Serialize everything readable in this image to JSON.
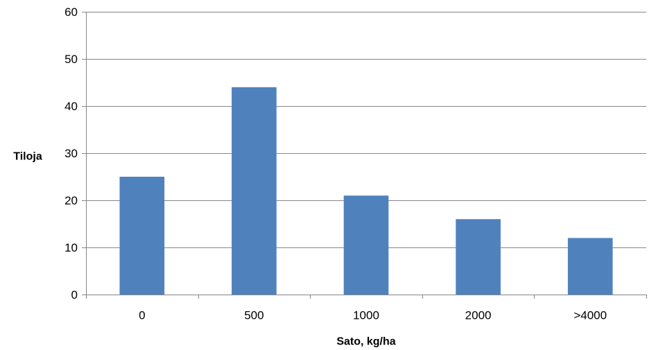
{
  "chart_data": {
    "type": "bar",
    "categories": [
      "0",
      "500",
      "1000",
      "2000",
      ">4000"
    ],
    "series": [
      {
        "values": [
          25,
          44,
          21,
          16,
          12
        ],
        "color": "#4F81BD"
      }
    ],
    "xlabel": "Sato, kg/ha",
    "ylabel": "Tiloja",
    "ylim": [
      0,
      60
    ],
    "yticks": [
      "0",
      "10",
      "20",
      "30",
      "40",
      "50",
      "60"
    ],
    "grid": true,
    "legend": "none"
  }
}
